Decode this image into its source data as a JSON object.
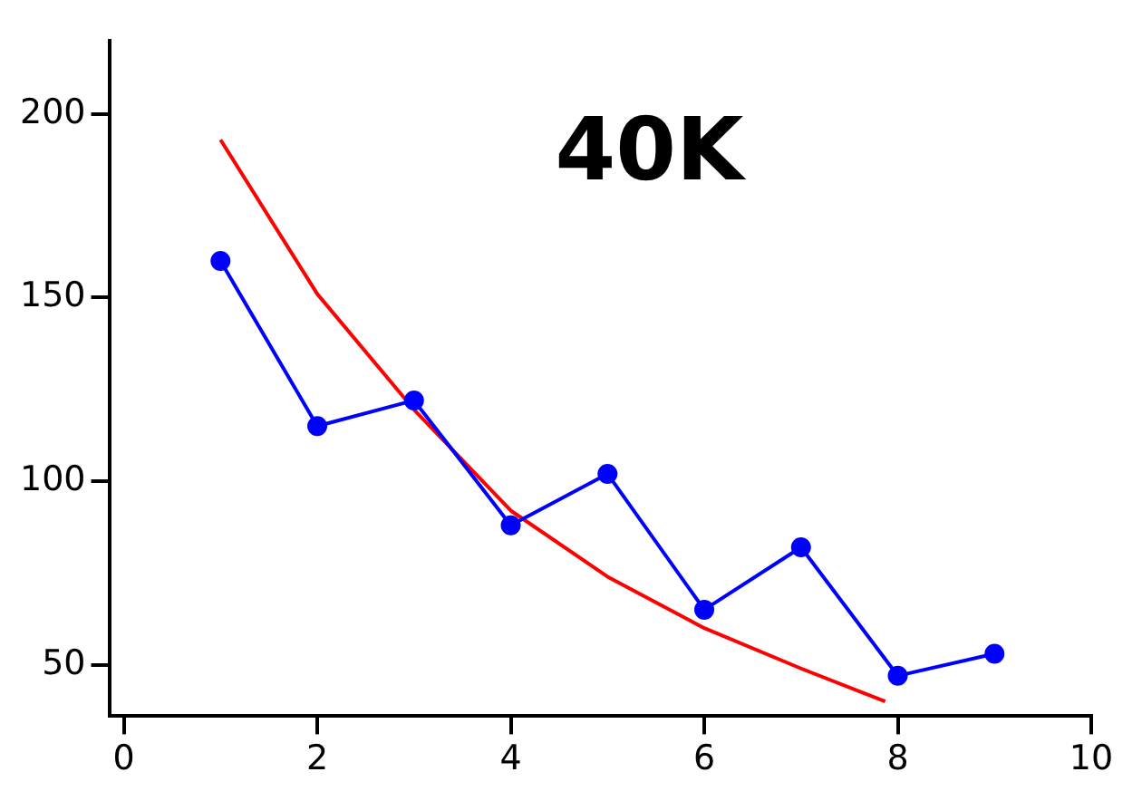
{
  "chart_data": {
    "type": "line",
    "title": "40K",
    "xlim": [
      -0.15,
      10
    ],
    "xticks": [
      0,
      2,
      4,
      6,
      8,
      10
    ],
    "ylim": [
      36,
      220
    ],
    "yticks": [
      50,
      100,
      150,
      200
    ],
    "grid": false,
    "legend": false,
    "series": [
      {
        "color": "#0000ff",
        "marker": "circle",
        "x": [
          1,
          2,
          3,
          4,
          5,
          6,
          7,
          8,
          9
        ],
        "values": [
          160,
          115,
          122,
          88,
          102,
          65,
          82,
          47,
          53
        ]
      },
      {
        "color": "#ff0000",
        "marker": "none",
        "x": [
          1,
          2,
          3,
          4,
          5,
          6,
          7,
          7.87
        ],
        "values": [
          193,
          151,
          119.5,
          92,
          74,
          60,
          49,
          40
        ]
      }
    ]
  }
}
